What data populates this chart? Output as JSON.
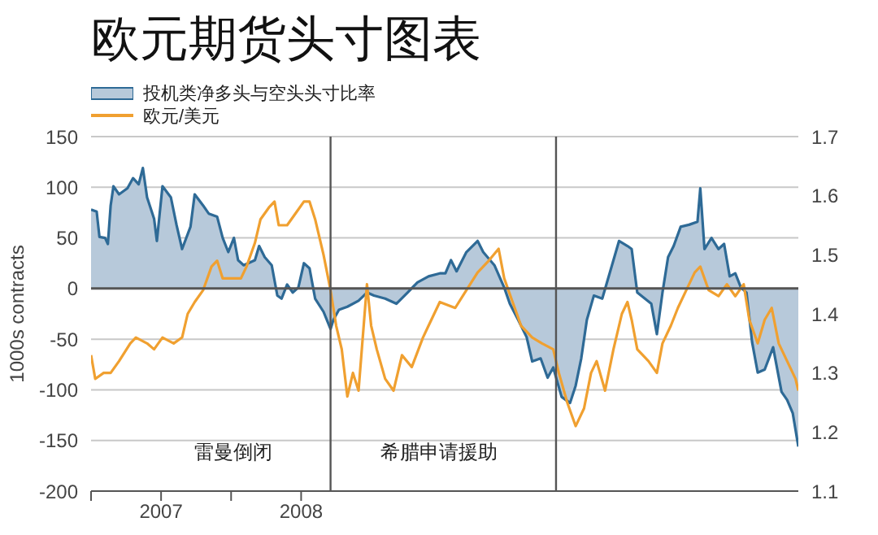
{
  "chart_data": {
    "type": "line",
    "title": "欧元期货头寸图表",
    "ylabel": "1000s contracts",
    "xlim": [
      2007,
      2012.05
    ],
    "xticks": [
      {
        "value": 2007,
        "label": null
      },
      {
        "value": 2007.5,
        "label": "2007"
      },
      {
        "value": 2008,
        "label": null
      },
      {
        "value": 2008.5,
        "label": "2008"
      }
    ],
    "ylim": [
      -200,
      150
    ],
    "yticks": [
      -200,
      -150,
      -100,
      -50,
      0,
      50,
      100,
      150
    ],
    "y2lim": [
      1.1,
      1.7
    ],
    "y2ticks": [
      1.1,
      1.2,
      1.3,
      1.4,
      1.5,
      1.6,
      1.7
    ],
    "grid": "y",
    "legend": "top left",
    "marker": "none",
    "ref_lines": [
      {
        "axis": "x",
        "value": 2008.71,
        "label": "雷曼倒闭",
        "color": "#555555"
      },
      {
        "axis": "x",
        "value": 2010.32,
        "label": "希腊申请援助",
        "color": "#555555"
      },
      {
        "axis": "y",
        "value": 0,
        "color": "#555555"
      }
    ],
    "series": [
      {
        "name": "投机类净多头与空头头寸比率",
        "type": "area",
        "color": "#2e6a96",
        "x": [
          2007.0,
          2007.04,
          2007.06,
          2007.1,
          2007.12,
          2007.14,
          2007.16,
          2007.2,
          2007.26,
          2007.3,
          2007.34,
          2007.37,
          2007.4,
          2007.45,
          2007.47,
          2007.51,
          2007.57,
          2007.61,
          2007.65,
          2007.71,
          2007.74,
          2007.8,
          2007.84,
          2007.9,
          2007.94,
          2007.98,
          2008.02,
          2008.05,
          2008.09,
          2008.17,
          2008.2,
          2008.24,
          2008.29,
          2008.33,
          2008.36,
          2008.4,
          2008.44,
          2008.48,
          2008.52,
          2008.56,
          2008.6,
          2008.66,
          2008.71,
          2008.73,
          2008.77,
          2008.83,
          2008.91,
          2008.97,
          2009.02,
          2009.1,
          2009.18,
          2009.26,
          2009.33,
          2009.41,
          2009.49,
          2009.53,
          2009.57,
          2009.61,
          2009.68,
          2009.76,
          2009.8,
          2009.88,
          2009.95,
          2009.99,
          2010.05,
          2010.11,
          2010.15,
          2010.21,
          2010.26,
          2010.3,
          2010.36,
          2010.42,
          2010.46,
          2010.5,
          2010.54,
          2010.59,
          2010.65,
          2010.73,
          2010.77,
          2010.83,
          2010.86,
          2010.9,
          2011.0,
          2011.04,
          2011.08,
          2011.12,
          2011.16,
          2011.21,
          2011.27,
          2011.33,
          2011.35,
          2011.38,
          2011.43,
          2011.48,
          2011.52,
          2011.56,
          2011.6,
          2011.64,
          2011.68,
          2011.72,
          2011.76,
          2011.81,
          2011.87,
          2011.93,
          2011.97,
          2012.01,
          2012.05
        ],
        "values": [
          78,
          76,
          51,
          50,
          44,
          82,
          101,
          93,
          99,
          109,
          103,
          119,
          90,
          69,
          47,
          101,
          90,
          63,
          39,
          61,
          93,
          82,
          74,
          71,
          50,
          36,
          50,
          28,
          23,
          28,
          42,
          31,
          23,
          -7,
          -10,
          4,
          -4,
          1,
          25,
          20,
          -10,
          -23,
          -40,
          -31,
          -21,
          -18,
          -12,
          -4,
          -7,
          -10,
          -15,
          -4,
          6,
          12,
          15,
          15,
          28,
          17,
          36,
          47,
          36,
          23,
          1,
          -15,
          -31,
          -48,
          -72,
          -69,
          -88,
          -78,
          -107,
          -113,
          -96,
          -69,
          -31,
          -7,
          -10,
          28,
          47,
          42,
          39,
          -4,
          -15,
          -45,
          -4,
          31,
          42,
          61,
          63,
          66,
          99,
          39,
          50,
          39,
          44,
          12,
          15,
          1,
          -4,
          -53,
          -83,
          -80,
          -58,
          -102,
          -110,
          -123,
          -156
        ]
      },
      {
        "name": "欧元/美元",
        "axis": "y2",
        "color": "#f0a030",
        "x": [
          2007.0,
          2007.03,
          2007.09,
          2007.14,
          2007.2,
          2007.28,
          2007.32,
          2007.4,
          2007.45,
          2007.51,
          2007.59,
          2007.65,
          2007.69,
          2007.74,
          2007.8,
          2007.86,
          2007.9,
          2007.94,
          2007.98,
          2008.02,
          2008.07,
          2008.11,
          2008.17,
          2008.21,
          2008.27,
          2008.31,
          2008.34,
          2008.4,
          2008.46,
          2008.52,
          2008.56,
          2008.6,
          2008.66,
          2008.71,
          2008.75,
          2008.79,
          2008.83,
          2008.87,
          2008.91,
          2008.97,
          2009.0,
          2009.04,
          2009.1,
          2009.16,
          2009.22,
          2009.29,
          2009.37,
          2009.41,
          2009.49,
          2009.6,
          2009.68,
          2009.76,
          2009.84,
          2009.91,
          2009.95,
          2010.01,
          2010.07,
          2010.15,
          2010.22,
          2010.3,
          2010.34,
          2010.4,
          2010.46,
          2010.52,
          2010.57,
          2010.61,
          2010.67,
          2010.73,
          2010.79,
          2010.83,
          2010.86,
          2010.9,
          2010.98,
          2011.04,
          2011.08,
          2011.14,
          2011.19,
          2011.25,
          2011.31,
          2011.35,
          2011.41,
          2011.48,
          2011.54,
          2011.6,
          2011.66,
          2011.7,
          2011.76,
          2011.81,
          2011.86,
          2011.91,
          2011.97,
          2012.03,
          2012.05
        ],
        "values": [
          1.33,
          1.29,
          1.3,
          1.3,
          1.32,
          1.35,
          1.36,
          1.35,
          1.34,
          1.36,
          1.35,
          1.36,
          1.4,
          1.42,
          1.44,
          1.48,
          1.49,
          1.46,
          1.46,
          1.46,
          1.46,
          1.48,
          1.52,
          1.56,
          1.58,
          1.59,
          1.55,
          1.55,
          1.57,
          1.59,
          1.59,
          1.56,
          1.5,
          1.44,
          1.38,
          1.34,
          1.26,
          1.3,
          1.27,
          1.45,
          1.38,
          1.34,
          1.29,
          1.27,
          1.33,
          1.31,
          1.36,
          1.38,
          1.42,
          1.41,
          1.44,
          1.47,
          1.49,
          1.51,
          1.46,
          1.42,
          1.38,
          1.36,
          1.35,
          1.34,
          1.3,
          1.25,
          1.21,
          1.24,
          1.3,
          1.32,
          1.27,
          1.34,
          1.4,
          1.42,
          1.39,
          1.34,
          1.32,
          1.3,
          1.35,
          1.38,
          1.41,
          1.44,
          1.47,
          1.48,
          1.44,
          1.43,
          1.45,
          1.43,
          1.45,
          1.39,
          1.35,
          1.39,
          1.41,
          1.35,
          1.32,
          1.29,
          1.27
        ]
      }
    ]
  }
}
